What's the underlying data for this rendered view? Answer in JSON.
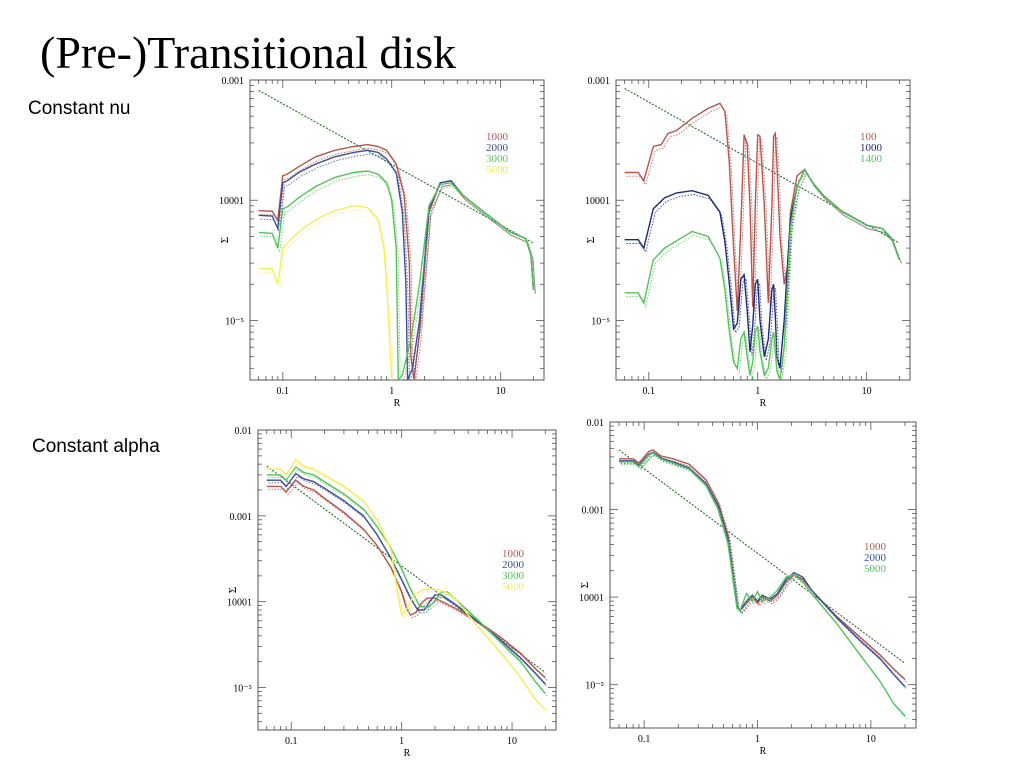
{
  "slide": {
    "title": "(Pre-)Transitional disk",
    "row_labels": [
      "Constant nu",
      "Constant alpha"
    ]
  },
  "chart_data": [
    {
      "type": "line",
      "xlabel": "R",
      "ylabel": "Σ",
      "xscale": "log",
      "yscale": "log",
      "xlim": [
        0.05,
        25
      ],
      "ylim": [
        3.2e-06,
        0.001
      ],
      "xticks": [
        "0.1",
        "1",
        "10"
      ],
      "yticks": [
        "0.001",
        "10001",
        "10⁻⁵"
      ],
      "legend": {
        "placement": "right",
        "entries": [
          "1000",
          "2000",
          "3000",
          "5000"
        ]
      },
      "reference_line": {
        "x": [
          0.06,
          20
        ],
        "y": [
          0.00082,
          4.4e-05
        ]
      },
      "series": [
        {
          "name": "1000",
          "color": "#b5564f",
          "x": [
            0.06,
            0.08,
            0.09,
            0.1,
            0.11,
            0.14,
            0.2,
            0.3,
            0.45,
            0.6,
            0.75,
            0.9,
            1.1,
            1.3,
            1.45,
            1.5,
            1.6,
            1.8,
            2.2,
            2.8,
            3.5,
            4.5,
            7,
            12,
            17,
            19,
            20
          ],
          "y": [
            8.2e-05,
            8.1e-05,
            6.8e-05,
            0.00016,
            0.000165,
            0.00019,
            0.00023,
            0.00026,
            0.00028,
            0.00029,
            0.00028,
            0.00026,
            0.0002,
            0.00011,
            3e-05,
            5e-06,
            3.2e-06,
            8e-06,
            8e-05,
            0.00014,
            0.000145,
            0.00011,
            8e-05,
            5.5e-05,
            4.8e-05,
            3.5e-05,
            1.8e-05
          ]
        },
        {
          "name": "2000",
          "color": "#3b4f9a",
          "x": [
            0.06,
            0.08,
            0.09,
            0.1,
            0.11,
            0.14,
            0.2,
            0.3,
            0.45,
            0.6,
            0.75,
            0.9,
            1.1,
            1.25,
            1.35,
            1.4,
            1.55,
            1.8,
            2.2,
            2.8,
            3.5,
            4.5,
            7,
            12,
            17,
            19,
            20
          ],
          "y": [
            7.5e-05,
            7.4e-05,
            5.8e-05,
            0.00014,
            0.000145,
            0.00017,
            0.0002,
            0.00023,
            0.00025,
            0.00026,
            0.00025,
            0.00022,
            0.00017,
            8e-05,
            2e-05,
            3.2e-06,
            4e-06,
            1e-05,
            8.5e-05,
            0.00014,
            0.000145,
            0.00011,
            8e-05,
            5.5e-05,
            4.8e-05,
            3.5e-05,
            1.8e-05
          ]
        },
        {
          "name": "3000",
          "color": "#55c25a",
          "x": [
            0.06,
            0.08,
            0.09,
            0.1,
            0.11,
            0.14,
            0.2,
            0.3,
            0.45,
            0.6,
            0.75,
            0.9,
            1.0,
            1.1,
            1.15,
            1.25,
            1.5,
            1.8,
            2.2,
            2.8,
            3.5,
            4.5,
            7,
            12,
            17,
            19,
            20
          ],
          "y": [
            5.4e-05,
            5.3e-05,
            4e-05,
            8.5e-05,
            8.8e-05,
            0.000105,
            0.00013,
            0.000155,
            0.00017,
            0.000175,
            0.000165,
            0.00014,
            0.0001,
            4e-05,
            3.2e-06,
            3.5e-06,
            7e-06,
            2e-05,
            9e-05,
            0.000135,
            0.00014,
            0.00011,
            8e-05,
            5.5e-05,
            4.8e-05,
            3.5e-05,
            1.8e-05
          ]
        },
        {
          "name": "5000",
          "color": "#f2ee5c",
          "x": [
            0.06,
            0.08,
            0.09,
            0.1,
            0.12,
            0.16,
            0.22,
            0.3,
            0.45,
            0.6,
            0.75,
            0.85,
            0.9,
            0.95,
            1.0
          ],
          "y": [
            2.7e-05,
            2.7e-05,
            2e-05,
            4e-05,
            4.8e-05,
            6e-05,
            7.2e-05,
            8.2e-05,
            9e-05,
            8.7e-05,
            7e-05,
            4e-05,
            2e-05,
            8e-06,
            3.2e-06
          ]
        }
      ]
    },
    {
      "type": "line",
      "xlabel": "R",
      "ylabel": "Σ",
      "xscale": "log",
      "yscale": "log",
      "xlim": [
        0.05,
        25
      ],
      "ylim": [
        3.2e-06,
        0.001
      ],
      "xticks": [
        "0.1",
        "1",
        "10"
      ],
      "yticks": [
        "0.001",
        "10001",
        "10⁻⁵"
      ],
      "legend": {
        "placement": "right",
        "entries": [
          "100",
          "1000",
          "1400"
        ]
      },
      "reference_line": {
        "x": [
          0.06,
          20
        ],
        "y": [
          0.00085,
          4.4e-05
        ]
      },
      "series": [
        {
          "name": "100",
          "color": "#b5564f",
          "x": [
            0.06,
            0.08,
            0.09,
            0.11,
            0.13,
            0.15,
            0.18,
            0.25,
            0.35,
            0.45,
            0.5,
            0.55,
            0.6,
            0.65,
            0.7,
            0.75,
            0.8,
            0.85,
            0.9,
            0.95,
            1.0,
            1.05,
            1.15,
            1.25,
            1.35,
            1.4,
            1.45,
            1.5,
            1.6,
            1.75,
            1.9,
            2.0,
            2.3,
            2.7,
            3.2,
            4,
            6,
            10,
            14,
            17,
            20
          ],
          "y": [
            0.00017,
            0.00017,
            0.000145,
            0.00028,
            0.00029,
            0.00036,
            0.00038,
            0.00048,
            0.00058,
            0.00064,
            0.00055,
            0.0002,
            4e-05,
            1.2e-05,
            6e-05,
            0.00035,
            0.00029,
            9e-05,
            1.3e-05,
            9e-05,
            0.00035,
            0.00034,
            9e-05,
            1.4e-05,
            9e-05,
            0.00034,
            0.00036,
            0.0002,
            5e-05,
            2e-05,
            3e-05,
            8e-05,
            0.00016,
            0.00018,
            0.00014,
            0.00011,
            8e-05,
            6.2e-05,
            5.8e-05,
            4.8e-05,
            3.2e-05
          ]
        },
        {
          "name": "1000",
          "color": "#1f2a78",
          "x": [
            0.06,
            0.08,
            0.09,
            0.11,
            0.14,
            0.18,
            0.25,
            0.35,
            0.45,
            0.5,
            0.55,
            0.6,
            0.65,
            0.7,
            0.75,
            0.8,
            0.85,
            0.9,
            0.95,
            1.0,
            1.05,
            1.15,
            1.25,
            1.35,
            1.4,
            1.45,
            1.5,
            1.6,
            1.75,
            1.9,
            2.0,
            2.3,
            2.7,
            3.2,
            4,
            6,
            10,
            14,
            17,
            20
          ],
          "y": [
            4.7e-05,
            4.7e-05,
            4e-05,
            8.5e-05,
            0.000105,
            0.000115,
            0.00012,
            0.00011,
            8e-05,
            4.5e-05,
            2e-05,
            8.5e-06,
            9.5e-06,
            2.2e-05,
            2.4e-05,
            1.2e-05,
            5.5e-06,
            9e-06,
            2e-05,
            2.2e-05,
            1e-05,
            5e-06,
            7e-06,
            1.8e-05,
            2e-05,
            1.1e-05,
            5e-06,
            4e-06,
            1e-05,
            3.5e-05,
            7e-05,
            0.00013,
            0.00018,
            0.00014,
            0.00011,
            8e-05,
            6.2e-05,
            5.8e-05,
            4.8e-05,
            3.2e-05
          ]
        },
        {
          "name": "1400",
          "color": "#55c25a",
          "x": [
            0.06,
            0.08,
            0.09,
            0.11,
            0.14,
            0.18,
            0.25,
            0.35,
            0.45,
            0.5,
            0.55,
            0.6,
            0.65,
            0.7,
            0.75,
            0.8,
            0.85,
            0.9,
            0.95,
            1.0,
            1.05,
            1.15,
            1.25,
            1.35,
            1.4,
            1.45,
            1.5,
            1.6,
            1.75,
            1.9,
            2.0,
            2.3,
            2.7,
            3.2,
            4,
            6,
            10,
            14,
            17,
            20
          ],
          "y": [
            1.7e-05,
            1.7e-05,
            1.4e-05,
            3.2e-05,
            4e-05,
            4.6e-05,
            5.5e-05,
            5e-05,
            3.3e-05,
            1.8e-05,
            8e-06,
            4.5e-06,
            4e-06,
            7e-06,
            8e-06,
            5e-06,
            3.5e-06,
            4.5e-06,
            8e-06,
            9e-06,
            5.5e-06,
            3.5e-06,
            4e-06,
            7e-06,
            8e-06,
            5.5e-06,
            3.8e-06,
            3.2e-06,
            6e-06,
            2.5e-05,
            6e-05,
            0.00013,
            0.00018,
            0.00014,
            0.00011,
            8e-05,
            6.2e-05,
            5.8e-05,
            4.8e-05,
            3.2e-05
          ]
        }
      ]
    },
    {
      "type": "line",
      "xlabel": "R",
      "ylabel": "Σ",
      "xscale": "log",
      "yscale": "log",
      "xlim": [
        0.05,
        25
      ],
      "ylim": [
        3.2e-06,
        0.01
      ],
      "xticks": [
        "0.1",
        "1",
        "10"
      ],
      "yticks": [
        "0.01",
        "0.001",
        "10001",
        "10⁻⁵"
      ],
      "legend": {
        "placement": "right",
        "entries": [
          "1000",
          "2000",
          "3000",
          "5000"
        ]
      },
      "reference_line": {
        "x": [
          0.06,
          20
        ],
        "y": [
          0.0038,
          1.5e-05
        ]
      },
      "series": [
        {
          "name": "1000",
          "color": "#b5564f",
          "x": [
            0.06,
            0.08,
            0.09,
            0.11,
            0.13,
            0.16,
            0.2,
            0.3,
            0.45,
            0.6,
            0.8,
            1.0,
            1.1,
            1.2,
            1.35,
            1.5,
            1.7,
            2.0,
            3,
            5,
            8,
            12,
            16,
            20
          ],
          "y": [
            0.0022,
            0.0022,
            0.0019,
            0.0026,
            0.0022,
            0.002,
            0.0016,
            0.0011,
            0.0007,
            0.00045,
            0.00025,
            0.00013,
            8.5e-05,
            7e-05,
            7.5e-05,
            9.5e-05,
            0.00011,
            0.00011,
            8.5e-05,
            5.8e-05,
            3.8e-05,
            2.5e-05,
            1.7e-05,
            1.3e-05
          ]
        },
        {
          "name": "2000",
          "color": "#3b4f9a",
          "x": [
            0.06,
            0.08,
            0.09,
            0.11,
            0.13,
            0.16,
            0.2,
            0.3,
            0.45,
            0.6,
            0.8,
            1.0,
            1.2,
            1.4,
            1.6,
            1.8,
            2.0,
            2.3,
            3,
            5,
            8,
            12,
            16,
            20
          ],
          "y": [
            0.0026,
            0.0026,
            0.0022,
            0.0031,
            0.0027,
            0.0025,
            0.0021,
            0.0015,
            0.001,
            0.0006,
            0.00032,
            0.00018,
            0.00011,
            8e-05,
            8e-05,
            0.0001,
            0.00012,
            0.00012,
            9.5e-05,
            5.8e-05,
            3.5e-05,
            2.2e-05,
            1.5e-05,
            1.1e-05
          ]
        },
        {
          "name": "3000",
          "color": "#55c25a",
          "x": [
            0.06,
            0.08,
            0.09,
            0.11,
            0.13,
            0.16,
            0.2,
            0.3,
            0.45,
            0.6,
            0.8,
            1.0,
            1.2,
            1.45,
            1.7,
            2.0,
            2.3,
            2.6,
            3,
            5,
            8,
            12,
            16,
            20
          ],
          "y": [
            0.003,
            0.003,
            0.0026,
            0.0037,
            0.0032,
            0.003,
            0.0025,
            0.0018,
            0.0012,
            0.00075,
            0.00042,
            0.00024,
            0.00014,
            9e-05,
            8.5e-05,
            0.0001,
            0.00013,
            0.00013,
            0.00011,
            6e-05,
            3.3e-05,
            2e-05,
            1.2e-05,
            8.5e-06
          ]
        },
        {
          "name": "5000",
          "color": "#f2ee5c",
          "x": [
            0.06,
            0.08,
            0.09,
            0.11,
            0.13,
            0.16,
            0.2,
            0.3,
            0.45,
            0.6,
            0.8,
            0.9,
            1.0,
            1.1,
            1.3,
            1.6,
            2.0,
            2.5,
            3,
            5,
            8,
            12,
            16,
            20
          ],
          "y": [
            0.0035,
            0.0035,
            0.003,
            0.0045,
            0.0038,
            0.0035,
            0.003,
            0.0022,
            0.0015,
            0.0009,
            0.0004,
            0.00015,
            7e-05,
            8e-05,
            0.00012,
            0.00014,
            0.00014,
            0.00013,
            0.00011,
            5e-05,
            2.5e-05,
            1.3e-05,
            7.5e-06,
            5.5e-06
          ]
        }
      ]
    },
    {
      "type": "line",
      "xlabel": "R",
      "ylabel": "Σ",
      "xscale": "log",
      "yscale": "log",
      "xlim": [
        0.05,
        25
      ],
      "ylim": [
        3.2e-06,
        0.01
      ],
      "xticks": [
        "0.1",
        "1",
        "10"
      ],
      "yticks": [
        "0.01",
        "0.001",
        "10001",
        "10⁻⁵"
      ],
      "legend": {
        "placement": "right",
        "entries": [
          "1000",
          "2000",
          "5000"
        ]
      },
      "reference_line": {
        "x": [
          0.06,
          20
        ],
        "y": [
          0.0048,
          1.75e-05
        ]
      },
      "series": [
        {
          "name": "1000",
          "color": "#b5564f",
          "x": [
            0.06,
            0.08,
            0.09,
            0.11,
            0.12,
            0.14,
            0.18,
            0.25,
            0.35,
            0.45,
            0.55,
            0.62,
            0.66,
            0.7,
            0.8,
            0.9,
            1.0,
            1.1,
            1.3,
            1.5,
            1.8,
            2.1,
            2.5,
            3,
            5,
            8,
            12,
            16,
            20
          ],
          "y": [
            0.0038,
            0.0038,
            0.0034,
            0.0046,
            0.0048,
            0.0041,
            0.0038,
            0.0033,
            0.0022,
            0.0012,
            0.0005,
            0.00015,
            8e-05,
            7e-05,
            8.5e-05,
            0.0001,
            8.5e-05,
            0.0001,
            9e-05,
            0.000105,
            0.00015,
            0.00018,
            0.00016,
            0.00012,
            6e-05,
            3.5e-05,
            2.2e-05,
            1.5e-05,
            1.15e-05
          ]
        },
        {
          "name": "2000",
          "color": "#3b4f9a",
          "x": [
            0.06,
            0.08,
            0.09,
            0.11,
            0.12,
            0.14,
            0.18,
            0.25,
            0.35,
            0.45,
            0.55,
            0.62,
            0.66,
            0.7,
            0.8,
            0.9,
            1.0,
            1.1,
            1.3,
            1.5,
            1.8,
            2.1,
            2.5,
            3,
            5,
            8,
            12,
            16,
            20
          ],
          "y": [
            0.0036,
            0.0036,
            0.0032,
            0.0043,
            0.0045,
            0.0039,
            0.0035,
            0.003,
            0.002,
            0.0011,
            0.00045,
            0.00014,
            7.8e-05,
            7e-05,
            9e-05,
            0.000105,
            9e-05,
            0.000105,
            9.5e-05,
            0.00011,
            0.00016,
            0.00019,
            0.00017,
            0.00012,
            5.8e-05,
            3.2e-05,
            2e-05,
            1.3e-05,
            9.5e-06
          ]
        },
        {
          "name": "5000",
          "color": "#55c25a",
          "x": [
            0.06,
            0.08,
            0.09,
            0.11,
            0.12,
            0.14,
            0.18,
            0.25,
            0.35,
            0.45,
            0.55,
            0.62,
            0.66,
            0.7,
            0.8,
            0.9,
            1.0,
            1.1,
            1.3,
            1.5,
            1.8,
            2.1,
            2.5,
            3,
            5,
            8,
            12,
            16,
            20
          ],
          "y": [
            0.0035,
            0.0035,
            0.0031,
            0.0042,
            0.0044,
            0.0038,
            0.0034,
            0.0029,
            0.0019,
            0.001,
            0.0004,
            0.00013,
            7.5e-05,
            7e-05,
            0.00011,
            9e-05,
            0.000115,
            9e-05,
            0.0001,
            0.00012,
            0.00017,
            0.00018,
            0.00015,
            0.00011,
            5e-05,
            2.2e-05,
            1.1e-05,
            6e-06,
            4.4e-06
          ]
        }
      ]
    }
  ]
}
